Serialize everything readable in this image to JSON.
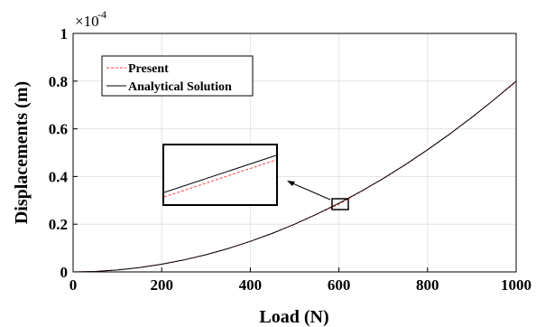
{
  "chart_data": {
    "type": "line",
    "xlabel": "Load (N)",
    "ylabel": "Displacements (m)",
    "xlim": [
      0,
      1000
    ],
    "ylim": [
      0,
      1
    ],
    "y_multiplier_base": "×10",
    "y_multiplier_exp": "-4",
    "x_ticks": [
      "0",
      "200",
      "400",
      "600",
      "800",
      "1000"
    ],
    "y_ticks": [
      "0",
      "0.2",
      "0.4",
      "0.6",
      "0.8",
      "1"
    ],
    "grid": true,
    "legend_position": "top-left",
    "series": [
      {
        "name": "Present",
        "style": "dashed",
        "color": "#ff3b3b",
        "x": [
          0,
          50,
          100,
          150,
          200,
          250,
          300,
          350,
          400,
          450,
          500,
          550,
          600,
          650,
          700,
          750,
          800,
          850,
          900,
          950,
          1000
        ],
        "y": [
          0,
          0.002,
          0.008,
          0.018,
          0.032,
          0.05,
          0.072,
          0.098,
          0.128,
          0.162,
          0.2,
          0.242,
          0.284,
          0.337,
          0.391,
          0.449,
          0.512,
          0.578,
          0.648,
          0.722,
          0.797
        ]
      },
      {
        "name": "Analytical Solution",
        "style": "solid",
        "color": "#000000",
        "x": [
          0,
          50,
          100,
          150,
          200,
          250,
          300,
          350,
          400,
          450,
          500,
          550,
          600,
          650,
          700,
          750,
          800,
          850,
          900,
          950,
          1000
        ],
        "y": [
          0,
          0.002,
          0.008,
          0.018,
          0.032,
          0.05,
          0.072,
          0.098,
          0.128,
          0.162,
          0.2,
          0.242,
          0.288,
          0.338,
          0.392,
          0.45,
          0.512,
          0.578,
          0.648,
          0.722,
          0.8
        ]
      }
    ],
    "inset": {
      "zoom_x": [
        590,
        620
      ],
      "zoom_y": [
        0.265,
        0.295
      ],
      "arrow": true
    }
  }
}
